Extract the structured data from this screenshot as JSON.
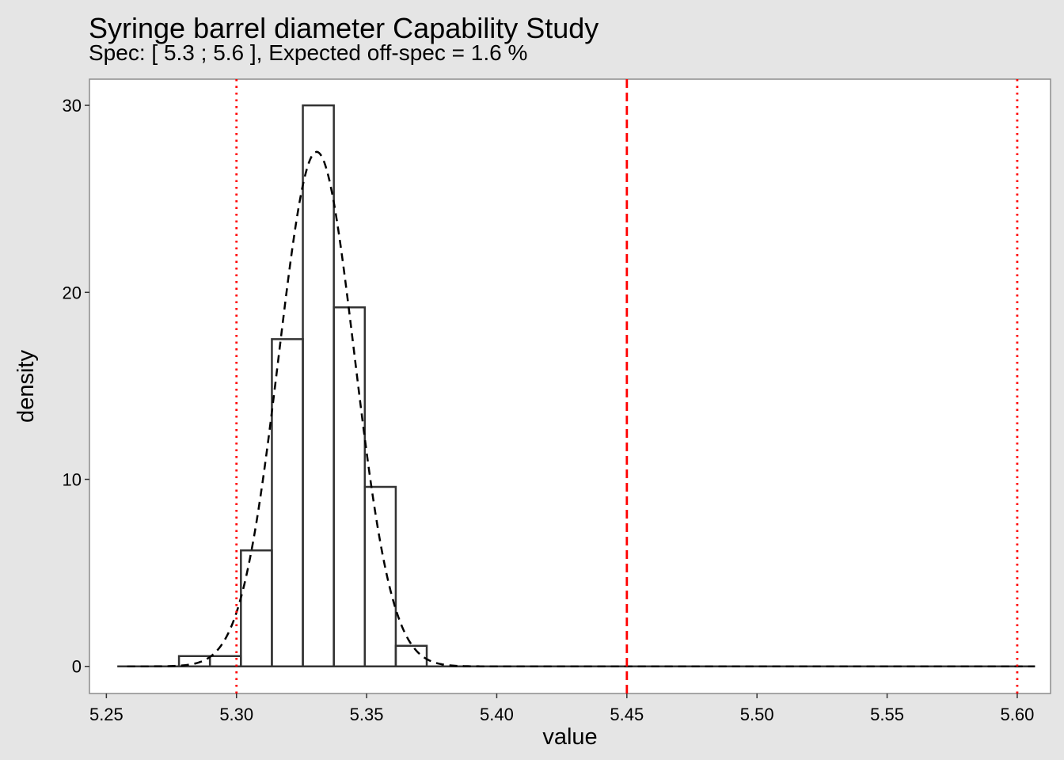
{
  "chart_data": {
    "type": "bar",
    "title": "Syringe barrel diameter Capability Study",
    "subtitle": "Spec: [ 5.3 ; 5.6 ], Expected off-spec =  1.6 %",
    "xlabel": "value",
    "ylabel": "density",
    "xlim": [
      5.2435,
      5.6128
    ],
    "ylim": [
      -1.45,
      31.4
    ],
    "x_ticks": [
      5.25,
      5.3,
      5.35,
      5.4,
      5.45,
      5.5,
      5.55,
      5.6
    ],
    "x_tick_labels": [
      "5.25",
      "5.30",
      "5.35",
      "5.40",
      "5.45",
      "5.50",
      "5.55",
      "5.60"
    ],
    "y_ticks": [
      0,
      10,
      20,
      30
    ],
    "y_tick_labels": [
      "0",
      "10",
      "20",
      "30"
    ],
    "histogram_bins": [
      {
        "x0": 5.2542,
        "x1": 5.266,
        "density": 0
      },
      {
        "x0": 5.266,
        "x1": 5.2779,
        "density": 0
      },
      {
        "x0": 5.2779,
        "x1": 5.2898,
        "density": 0.55
      },
      {
        "x0": 5.2898,
        "x1": 5.3017,
        "density": 0.55
      },
      {
        "x0": 5.3017,
        "x1": 5.3136,
        "density": 6.2
      },
      {
        "x0": 5.3136,
        "x1": 5.3255,
        "density": 17.5
      },
      {
        "x0": 5.3255,
        "x1": 5.3374,
        "density": 30.0
      },
      {
        "x0": 5.3374,
        "x1": 5.3493,
        "density": 19.2
      },
      {
        "x0": 5.3493,
        "x1": 5.3612,
        "density": 9.6
      },
      {
        "x0": 5.3612,
        "x1": 5.3731,
        "density": 1.1
      },
      {
        "x0": 5.3731,
        "x1": 5.6068,
        "density": 0
      }
    ],
    "normal_fit": {
      "mean": 5.3308,
      "sd": 0.0145,
      "x_range": [
        5.258,
        5.6068
      ],
      "line": "dashed"
    },
    "reference_lines": [
      {
        "x": 5.3,
        "style": "dotted",
        "color": "#ff0000"
      },
      {
        "x": 5.45,
        "style": "dashed",
        "color": "#ff0000"
      },
      {
        "x": 5.6,
        "style": "dotted",
        "color": "#ff0000"
      }
    ],
    "grid": false,
    "colors": {
      "background": "#e5e5e5",
      "panel": "#ffffff",
      "bars": "#333333",
      "fit": "#000000"
    }
  }
}
